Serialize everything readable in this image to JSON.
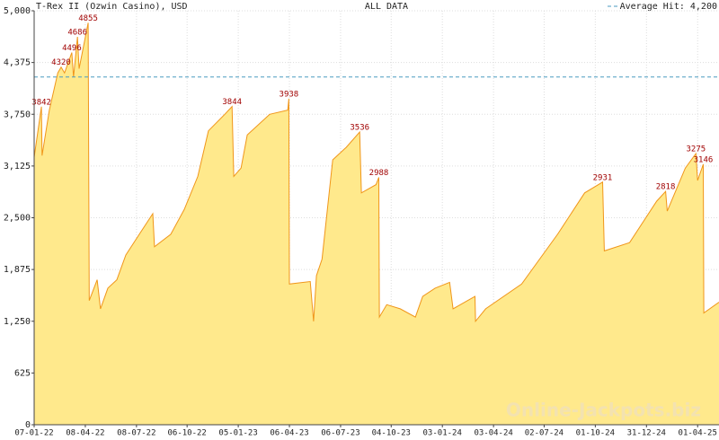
{
  "chart_data": {
    "type": "area",
    "title": "T-Rex II (Ozwin Casino), USD",
    "subtitle": "ALL DATA",
    "watermark": "Online-Jackpots.biz",
    "average": 4200,
    "average_label": "Average Hit: 4,200",
    "average_color": "#4a9bc0",
    "series": [
      {
        "name": "T-Rex II",
        "color": "#f0961a",
        "fill": "#ffe98c",
        "x": [
          "2022-01-07",
          "2022-01-20",
          "2022-01-21",
          "2022-02-03",
          "2022-02-18",
          "2022-02-24",
          "2022-03-02",
          "2022-03-15",
          "2022-03-18",
          "2022-03-25",
          "2022-03-28",
          "2022-04-13",
          "2022-04-15",
          "2022-04-29",
          "2022-05-05",
          "2022-05-18",
          "2022-06-03",
          "2022-06-19",
          "2022-07-13",
          "2022-08-06",
          "2022-08-09",
          "2022-09-07",
          "2022-10-01",
          "2022-10-25",
          "2022-11-13",
          "2022-12-12",
          "2022-12-25",
          "2022-12-28",
          "2023-01-10",
          "2023-01-21",
          "2023-03-02",
          "2023-04-03",
          "2023-04-05",
          "2023-04-06",
          "2023-05-13",
          "2023-05-19",
          "2023-05-24",
          "2023-06-03",
          "2023-06-22",
          "2023-07-16",
          "2023-08-09",
          "2023-08-12",
          "2023-09-07",
          "2023-09-12",
          "2023-09-13",
          "2023-09-26",
          "2023-10-20",
          "2023-11-16",
          "2023-11-29",
          "2023-12-21",
          "2024-01-16",
          "2024-01-22",
          "2024-02-17",
          "2024-03-01",
          "2024-03-02",
          "2024-03-20",
          "2024-05-23",
          "2024-07-26",
          "2024-09-12",
          "2024-10-14",
          "2024-10-17",
          "2024-12-01",
          "2025-01-18",
          "2025-02-03",
          "2025-02-06",
          "2025-03-10",
          "2025-03-29",
          "2025-04-01",
          "2025-04-11",
          "2025-04-12",
          "2025-05-09"
        ],
        "values": [
          3230,
          3842,
          3250,
          3800,
          4250,
          4320,
          4250,
          4496,
          4200,
          4686,
          4300,
          4855,
          1500,
          1750,
          1400,
          1650,
          1750,
          2050,
          2300,
          2550,
          2150,
          2300,
          2600,
          3000,
          3550,
          3750,
          3844,
          3000,
          3100,
          3500,
          3750,
          3800,
          3938,
          1700,
          1730,
          1250,
          1800,
          2000,
          3200,
          3350,
          3536,
          2800,
          2900,
          2988,
          1300,
          1450,
          1400,
          1300,
          1550,
          1650,
          1720,
          1400,
          1500,
          1550,
          1250,
          1400,
          1700,
          2300,
          2800,
          2931,
          2100,
          2200,
          2700,
          2818,
          2580,
          3100,
          3275,
          2950,
          3146,
          1350,
          1480
        ]
      }
    ],
    "annotations": [
      {
        "x": "2022-01-20",
        "value": 3842
      },
      {
        "x": "2022-02-24",
        "value": 4320
      },
      {
        "x": "2022-03-15",
        "value": 4496
      },
      {
        "x": "2022-03-25",
        "value": 4686
      },
      {
        "x": "2022-04-13",
        "value": 4855
      },
      {
        "x": "2022-12-25",
        "value": 3844
      },
      {
        "x": "2023-04-05",
        "value": 3938
      },
      {
        "x": "2023-08-09",
        "value": 3536
      },
      {
        "x": "2023-09-12",
        "value": 2988
      },
      {
        "x": "2024-10-14",
        "value": 2931
      },
      {
        "x": "2025-02-03",
        "value": 2818
      },
      {
        "x": "2025-03-29",
        "value": 3275
      },
      {
        "x": "2025-04-11",
        "value": 3146
      }
    ],
    "xlim": [
      "2022-01-07",
      "2025-05-09"
    ],
    "xticks": [
      {
        "value": "2022-01-07",
        "label": "07-01-22"
      },
      {
        "value": "2022-04-08",
        "label": "08-04-22"
      },
      {
        "value": "2022-07-08",
        "label": "08-07-22"
      },
      {
        "value": "2022-10-06",
        "label": "06-10-22"
      },
      {
        "value": "2023-01-05",
        "label": "05-01-23"
      },
      {
        "value": "2023-04-06",
        "label": "06-04-23"
      },
      {
        "value": "2023-07-06",
        "label": "06-07-23"
      },
      {
        "value": "2023-10-04",
        "label": "04-10-23"
      },
      {
        "value": "2024-01-03",
        "label": "03-01-24"
      },
      {
        "value": "2024-04-03",
        "label": "03-04-24"
      },
      {
        "value": "2024-07-02",
        "label": "02-07-24"
      },
      {
        "value": "2024-10-01",
        "label": "01-10-24"
      },
      {
        "value": "2024-12-31",
        "label": "31-12-24"
      },
      {
        "value": "2025-04-01",
        "label": "01-04-25"
      }
    ],
    "ylim": [
      0,
      5000
    ],
    "yticks": [
      0,
      625,
      {
        "value": 1250,
        "label": "1,250"
      },
      {
        "value": 1875,
        "label": "1,875"
      },
      {
        "value": 2500,
        "label": "2,500"
      },
      {
        "value": 3125,
        "label": "3,125"
      },
      {
        "value": 3750,
        "label": "3,750"
      },
      {
        "value": 4375,
        "label": "4,375"
      },
      {
        "value": 5000,
        "label": "5,000"
      }
    ],
    "grid": true
  }
}
